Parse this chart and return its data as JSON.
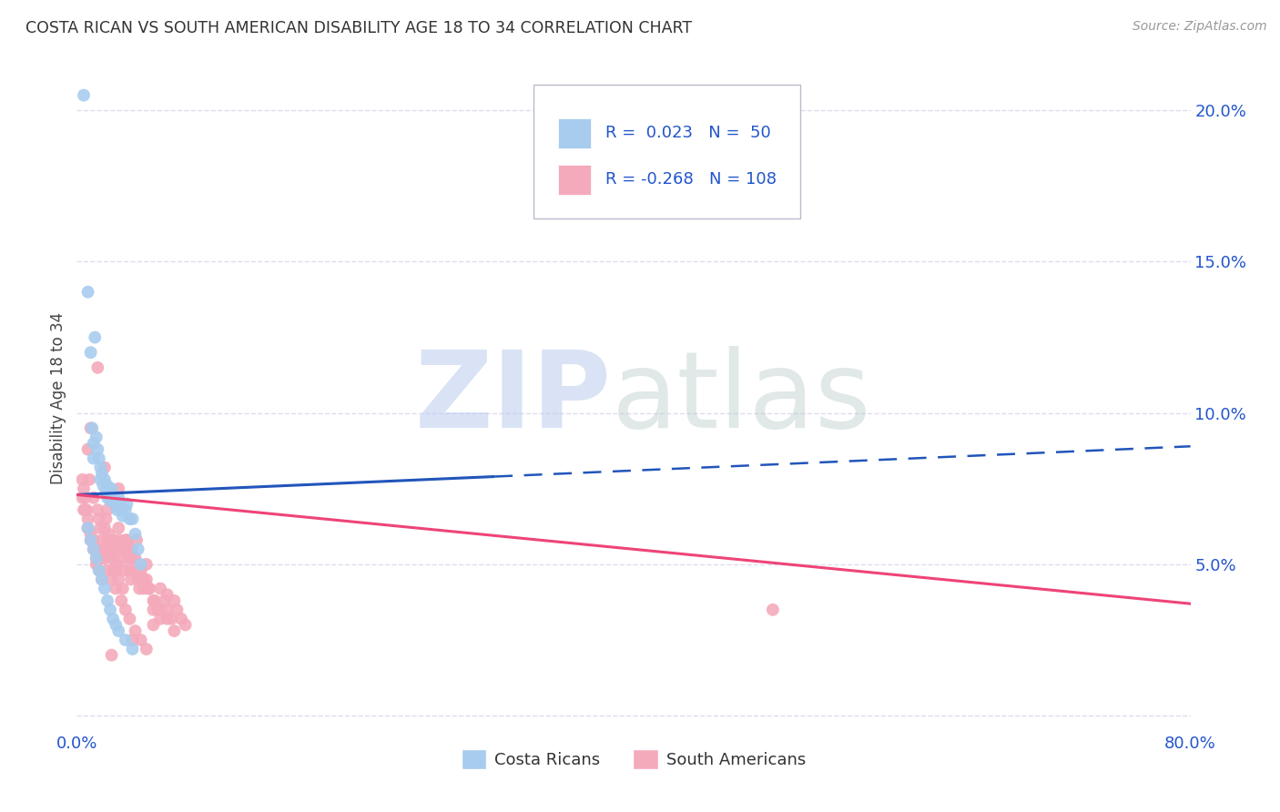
{
  "title": "COSTA RICAN VS SOUTH AMERICAN DISABILITY AGE 18 TO 34 CORRELATION CHART",
  "source": "Source: ZipAtlas.com",
  "ylabel": "Disability Age 18 to 34",
  "xlim": [
    0,
    0.8
  ],
  "ylim": [
    -0.005,
    0.215
  ],
  "blue_color": "#A8CCEE",
  "pink_color": "#F4AABB",
  "blue_line_color": "#2255BB",
  "pink_line_color": "#EE4477",
  "blue_R": 0.023,
  "blue_N": 50,
  "pink_R": -0.268,
  "pink_N": 108,
  "legend_text_color": "#2255CC",
  "background_color": "#FFFFFF",
  "grid_color": "#DDDDEE",
  "costa_rican_x": [
    0.005,
    0.008,
    0.01,
    0.011,
    0.012,
    0.012,
    0.013,
    0.014,
    0.015,
    0.016,
    0.017,
    0.017,
    0.018,
    0.019,
    0.02,
    0.021,
    0.022,
    0.022,
    0.023,
    0.024,
    0.025,
    0.026,
    0.027,
    0.028,
    0.029,
    0.03,
    0.031,
    0.032,
    0.033,
    0.035,
    0.036,
    0.038,
    0.04,
    0.042,
    0.044,
    0.046,
    0.008,
    0.01,
    0.012,
    0.014,
    0.016,
    0.018,
    0.02,
    0.022,
    0.024,
    0.026,
    0.028,
    0.03,
    0.035,
    0.04
  ],
  "costa_rican_y": [
    0.205,
    0.14,
    0.12,
    0.095,
    0.09,
    0.085,
    0.125,
    0.092,
    0.088,
    0.085,
    0.082,
    0.078,
    0.08,
    0.076,
    0.078,
    0.074,
    0.072,
    0.076,
    0.073,
    0.071,
    0.075,
    0.073,
    0.072,
    0.07,
    0.068,
    0.072,
    0.07,
    0.068,
    0.066,
    0.068,
    0.07,
    0.065,
    0.065,
    0.06,
    0.055,
    0.05,
    0.062,
    0.058,
    0.055,
    0.052,
    0.048,
    0.045,
    0.042,
    0.038,
    0.035,
    0.032,
    0.03,
    0.028,
    0.025,
    0.022
  ],
  "south_american_x": [
    0.004,
    0.005,
    0.006,
    0.007,
    0.008,
    0.009,
    0.01,
    0.011,
    0.012,
    0.013,
    0.014,
    0.015,
    0.016,
    0.017,
    0.018,
    0.019,
    0.02,
    0.021,
    0.022,
    0.023,
    0.024,
    0.025,
    0.026,
    0.027,
    0.028,
    0.029,
    0.03,
    0.031,
    0.032,
    0.033,
    0.034,
    0.035,
    0.036,
    0.037,
    0.038,
    0.039,
    0.04,
    0.042,
    0.043,
    0.044,
    0.045,
    0.046,
    0.047,
    0.048,
    0.05,
    0.052,
    0.055,
    0.058,
    0.06,
    0.063,
    0.065,
    0.068,
    0.07,
    0.072,
    0.075,
    0.078,
    0.004,
    0.006,
    0.008,
    0.01,
    0.012,
    0.014,
    0.016,
    0.018,
    0.02,
    0.022,
    0.024,
    0.026,
    0.028,
    0.03,
    0.033,
    0.036,
    0.039,
    0.042,
    0.045,
    0.048,
    0.052,
    0.056,
    0.06,
    0.065,
    0.005,
    0.008,
    0.012,
    0.015,
    0.018,
    0.022,
    0.025,
    0.028,
    0.032,
    0.035,
    0.038,
    0.042,
    0.046,
    0.05,
    0.055,
    0.06,
    0.07,
    0.055,
    0.04,
    0.025,
    0.015,
    0.01,
    0.008,
    0.02,
    0.03,
    0.05,
    0.065,
    0.5
  ],
  "south_american_y": [
    0.078,
    0.075,
    0.072,
    0.068,
    0.065,
    0.078,
    0.06,
    0.058,
    0.072,
    0.055,
    0.05,
    0.068,
    0.065,
    0.062,
    0.058,
    0.055,
    0.052,
    0.065,
    0.068,
    0.06,
    0.055,
    0.052,
    0.048,
    0.058,
    0.055,
    0.05,
    0.062,
    0.058,
    0.055,
    0.052,
    0.048,
    0.058,
    0.055,
    0.052,
    0.048,
    0.045,
    0.052,
    0.048,
    0.058,
    0.045,
    0.042,
    0.048,
    0.045,
    0.042,
    0.045,
    0.042,
    0.038,
    0.035,
    0.042,
    0.038,
    0.035,
    0.032,
    0.038,
    0.035,
    0.032,
    0.03,
    0.072,
    0.068,
    0.062,
    0.058,
    0.055,
    0.052,
    0.048,
    0.045,
    0.062,
    0.058,
    0.055,
    0.052,
    0.048,
    0.045,
    0.042,
    0.058,
    0.055,
    0.052,
    0.048,
    0.045,
    0.042,
    0.038,
    0.035,
    0.032,
    0.068,
    0.062,
    0.058,
    0.055,
    0.052,
    0.048,
    0.045,
    0.042,
    0.038,
    0.035,
    0.032,
    0.028,
    0.025,
    0.022,
    0.035,
    0.032,
    0.028,
    0.03,
    0.025,
    0.02,
    0.115,
    0.095,
    0.088,
    0.082,
    0.075,
    0.05,
    0.04,
    0.035
  ]
}
